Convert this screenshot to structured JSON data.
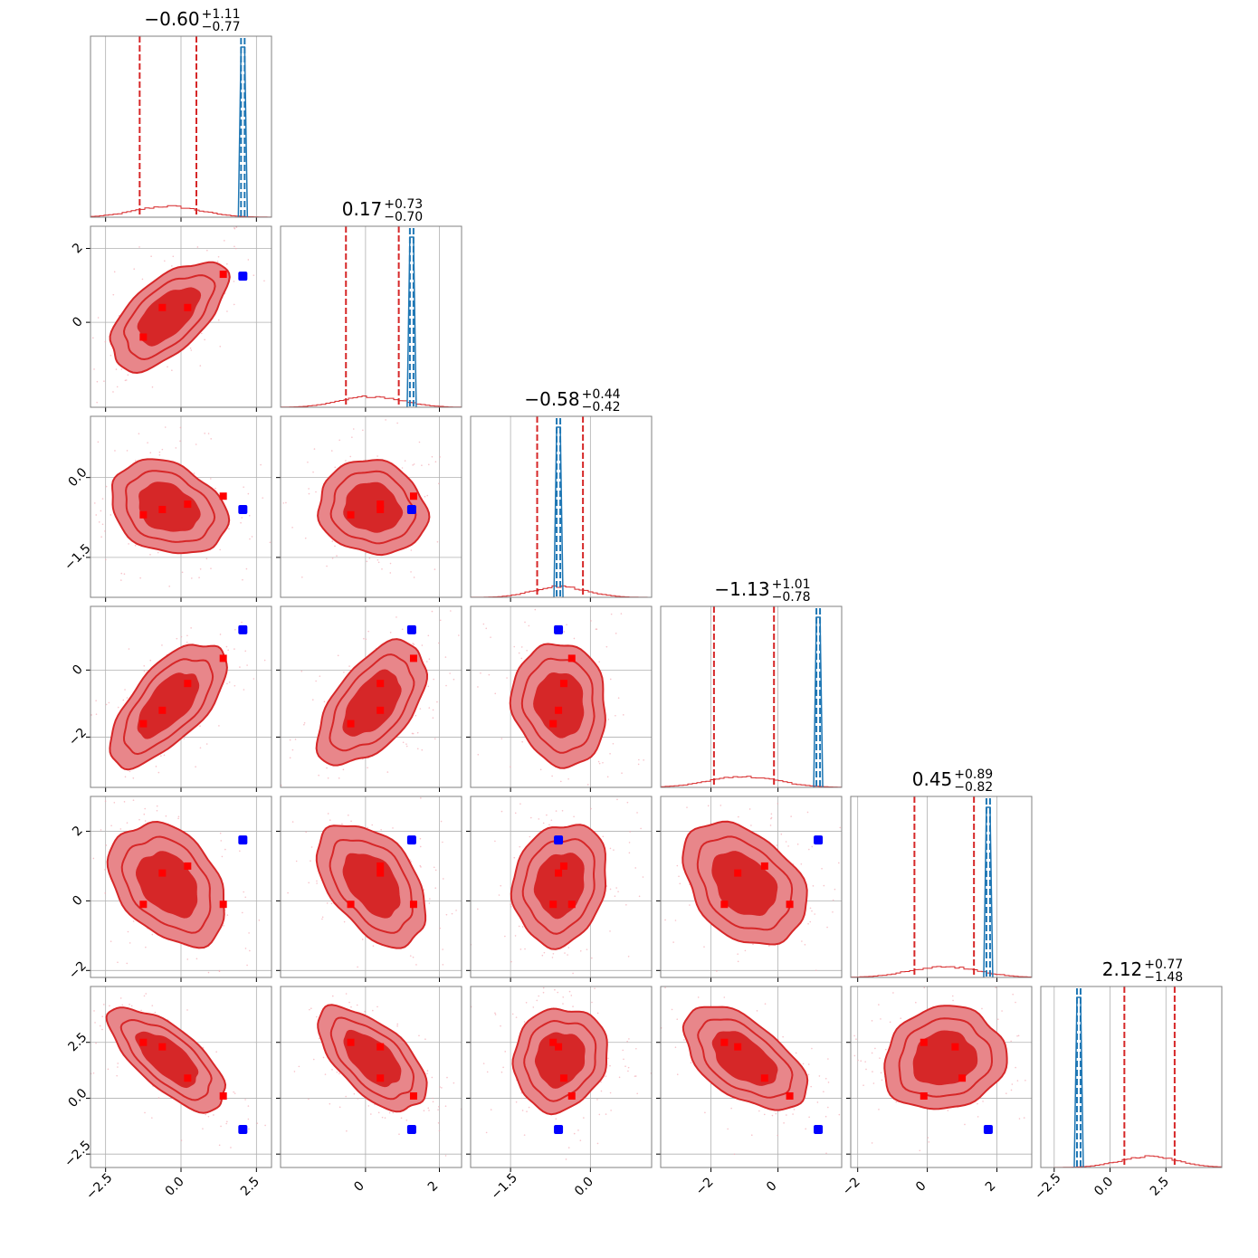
{
  "chart_data": {
    "type": "scatter",
    "subtype": "corner-plot",
    "colors": {
      "posterior": "#d62728",
      "posterior_mid": "#e8868a",
      "points": "#ff0000",
      "truth": "#1f77b4",
      "truth_points": "#0000ff",
      "grid": "#b0b0b0",
      "frame": "#808080"
    },
    "parameters": [
      {
        "range": [
          -3.0,
          3.0
        ],
        "ticks": [
          -2.5,
          0.0,
          2.5
        ],
        "tick_labels": [
          "−2.5",
          "0.0",
          "2.5"
        ],
        "median": "−0.60",
        "plus": "+1.11",
        "minus": "−0.77",
        "q_lo": -1.37,
        "q_hi": 0.51,
        "truth": 2.05,
        "points": [
          -1.25,
          -0.62,
          0.22,
          1.4
        ]
      },
      {
        "range": [
          -2.3,
          2.6
        ],
        "ticks": [
          0,
          2
        ],
        "tick_labels": [
          "0",
          "2"
        ],
        "median": "0.17",
        "plus": "+0.73",
        "minus": "−0.70",
        "q_lo": -0.53,
        "q_hi": 0.9,
        "truth": 1.25,
        "points": [
          -0.4,
          0.4,
          0.4,
          1.3
        ]
      },
      {
        "range": [
          -2.25,
          1.15
        ],
        "ticks": [
          -1.5,
          0.0
        ],
        "tick_labels": [
          "−1.5",
          "0.0"
        ],
        "median": "−0.58",
        "plus": "+0.44",
        "minus": "−0.42",
        "q_lo": -1.0,
        "q_hi": -0.14,
        "truth": -0.6,
        "points": [
          -0.7,
          -0.6,
          -0.5,
          -0.35
        ]
      },
      {
        "range": [
          -3.5,
          1.9
        ],
        "ticks": [
          -2,
          0
        ],
        "tick_labels": [
          "−2",
          "0"
        ],
        "median": "−1.13",
        "plus": "+1.01",
        "minus": "−0.78",
        "q_lo": -1.91,
        "q_hi": -0.12,
        "truth": 1.2,
        "points": [
          -1.6,
          -1.2,
          -0.4,
          0.35
        ]
      },
      {
        "range": [
          -2.2,
          3.0
        ],
        "ticks": [
          -2,
          0,
          2
        ],
        "tick_labels": [
          "−2",
          "0",
          "2"
        ],
        "median": "0.45",
        "plus": "+0.89",
        "minus": "−0.82",
        "q_lo": -0.37,
        "q_hi": 1.34,
        "truth": 1.75,
        "points": [
          -0.1,
          0.8,
          1.0,
          -0.1
        ]
      },
      {
        "range": [
          -3.1,
          5.0
        ],
        "ticks": [
          -2.5,
          0.0,
          2.5
        ],
        "tick_labels": [
          "−2.5",
          "0.0",
          "2.5"
        ],
        "median": "2.12",
        "plus": "+0.77",
        "minus": "−1.48",
        "q_lo": 0.64,
        "q_hi": 2.89,
        "truth": -1.4,
        "points": [
          2.5,
          2.3,
          0.9,
          0.1
        ]
      }
    ],
    "correlations": [
      [
        1,
        0.6,
        -0.25,
        0.65,
        -0.35,
        -0.7
      ],
      [
        0.6,
        1,
        -0.1,
        0.55,
        -0.45,
        -0.6
      ],
      [
        -0.25,
        -0.1,
        1,
        -0.1,
        0.15,
        0.1
      ],
      [
        0.65,
        0.55,
        -0.1,
        1,
        -0.35,
        -0.55
      ],
      [
        -0.35,
        -0.45,
        0.15,
        -0.35,
        1,
        0.1
      ],
      [
        -0.7,
        -0.6,
        0.1,
        -0.55,
        0.1,
        1
      ]
    ]
  }
}
